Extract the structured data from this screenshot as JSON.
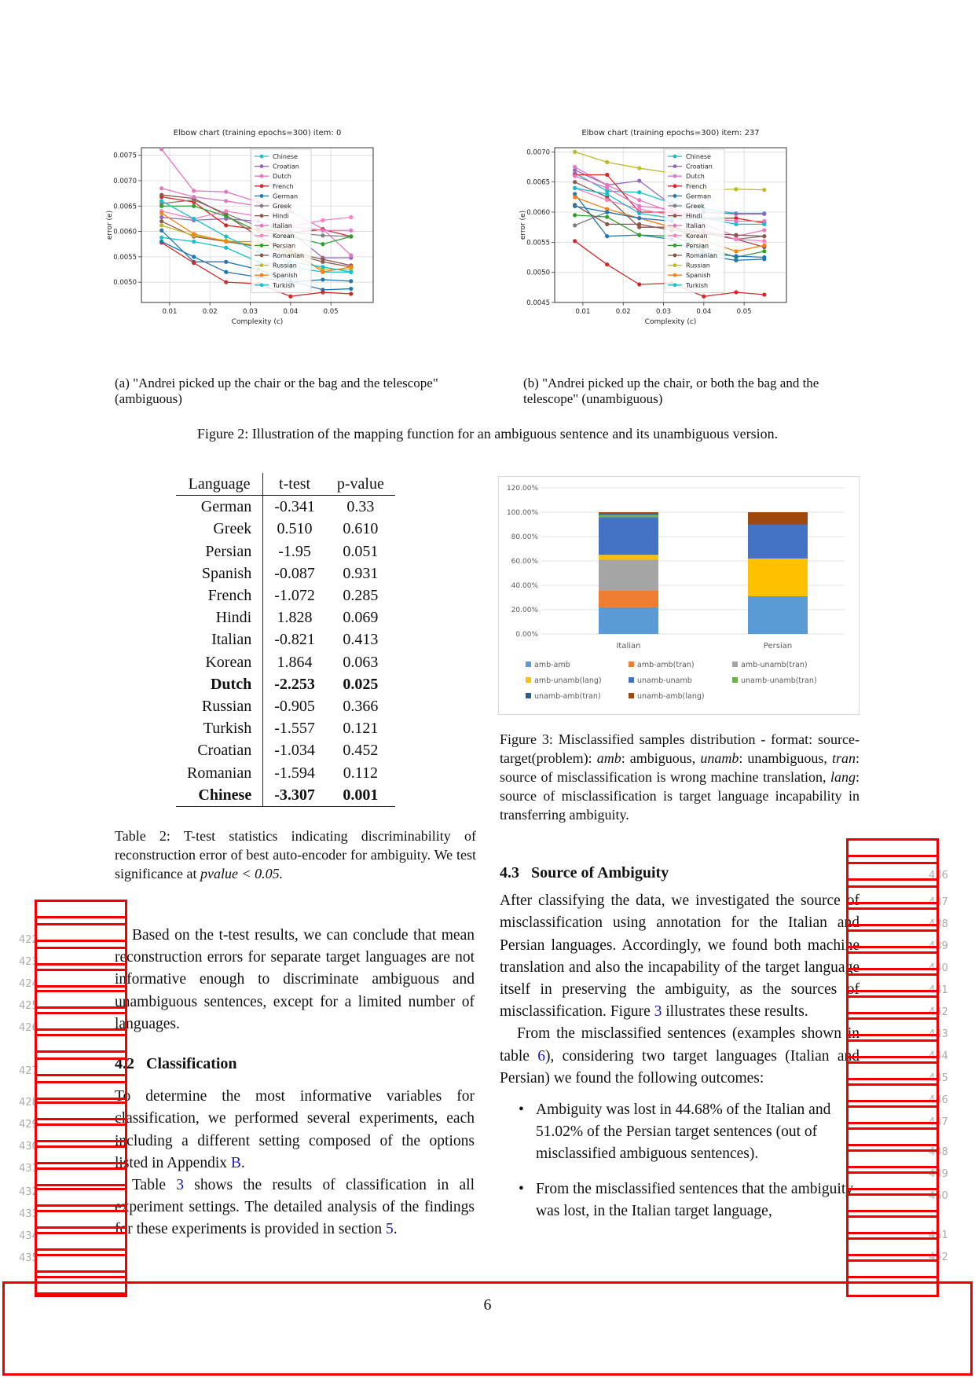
{
  "figure2": {
    "chart_a": {
      "title": "Elbow chart (training epochs=300) item: 0",
      "xlabel": "Complexity (c)",
      "ylabel": "error (e)",
      "x_ticks": [
        "0.01",
        "0.02",
        "0.03",
        "0.04",
        "0.05"
      ],
      "y_ticks": [
        "0.0050",
        "0.0055",
        "0.0060",
        "0.0065",
        "0.0070",
        "0.0075"
      ]
    },
    "chart_b": {
      "title": "Elbow chart (training epochs=300) item: 237",
      "xlabel": "Complexity (c)",
      "ylabel": "error (e)",
      "x_ticks": [
        "0.01",
        "0.02",
        "0.03",
        "0.04",
        "0.05"
      ],
      "y_ticks": [
        "0.0045",
        "0.0050",
        "0.0055",
        "0.0060",
        "0.0065",
        "0.0070"
      ]
    },
    "subcaption_a": "(a) \"Andrei picked up the chair or the bag and the telescope\" (ambiguous)",
    "subcaption_b": "(b) \"Andrei picked up the chair, or both the bag and the telescope\" (unambiguous)",
    "caption": "Figure 2: Illustration of the mapping function for an ambiguous sentence and its unambiguous version."
  },
  "chart_data": [
    {
      "type": "line",
      "title": "Elbow chart (training epochs=300) item: 0",
      "xlabel": "Complexity (c)",
      "ylabel": "error (e)",
      "x": [
        0.008,
        0.016,
        0.024,
        0.032,
        0.04,
        0.048,
        0.055
      ],
      "xlim": [
        0.003,
        0.0605
      ],
      "ylim": [
        0.0046,
        0.00765
      ],
      "legend": "top-center",
      "series": [
        {
          "name": "Chinese",
          "color": "#17becf",
          "values": [
            0.00588,
            0.0058,
            0.00568,
            0.0054,
            0.0053,
            0.0052,
            0.0052
          ]
        },
        {
          "name": "Croatian",
          "color": "#9467bd",
          "values": [
            0.00628,
            0.00622,
            0.00625,
            0.0062,
            0.006,
            0.00548,
            0.00548
          ]
        },
        {
          "name": "Dutch",
          "color": "#e377c2",
          "values": [
            0.00762,
            0.0068,
            0.00678,
            0.00658,
            0.0064,
            0.00605,
            0.00553
          ]
        },
        {
          "name": "French",
          "color": "#d62728",
          "values": [
            0.00668,
            0.00658,
            0.00612,
            0.00604,
            0.00597,
            0.00604,
            0.0059
          ]
        },
        {
          "name": "German",
          "color": "#1f77b4",
          "values": [
            0.00602,
            0.0054,
            0.0054,
            0.00525,
            0.00502,
            0.00485,
            0.00487
          ]
        },
        {
          "name": "Greek",
          "color": "#7f7f7f",
          "values": [
            0.00655,
            0.00662,
            0.00635,
            0.0061,
            0.00598,
            0.00592,
            0.0059
          ]
        },
        {
          "name": "Hindi",
          "color": "#8c564b",
          "values": [
            0.00672,
            0.00665,
            0.00632,
            0.0059,
            0.00558,
            0.0054,
            0.0053
          ]
        },
        {
          "name": "Italian",
          "color": "#e377c2",
          "values": [
            0.00685,
            0.00668,
            0.0066,
            0.0065,
            0.0061,
            0.00602,
            0.00602
          ]
        },
        {
          "name": "Korean",
          "color": "#ff7fbf",
          "values": [
            0.0064,
            0.00625,
            0.0064,
            0.0063,
            0.0061,
            0.00622,
            0.00628
          ]
        },
        {
          "name": "Persian",
          "color": "#2ca02c",
          "values": [
            0.0065,
            0.0065,
            0.0063,
            0.006,
            0.0059,
            0.00575,
            0.0059
          ]
        },
        {
          "name": "Romanian",
          "color": "#8c564b",
          "values": [
            0.0062,
            0.0059,
            0.0058,
            0.0057,
            0.0056,
            0.00545,
            0.00533
          ]
        },
        {
          "name": "Russian",
          "color": "#bcbd22",
          "values": [
            0.00612,
            0.00592,
            0.00582,
            0.00572,
            0.00555,
            0.00525,
            0.00525
          ]
        },
        {
          "name": "Spanish",
          "color": "#ff7f0e",
          "values": [
            0.00636,
            0.00595,
            0.0058,
            0.0058,
            0.00565,
            0.0052,
            0.0053
          ]
        },
        {
          "name": "Turkish",
          "color": "#17becf",
          "values": [
            0.0066,
            0.00625,
            0.0059,
            0.0056,
            0.0054,
            0.0053,
            0.0052
          ]
        },
        {
          "name": "",
          "color": "#d62728",
          "values": [
            0.00578,
            0.00538,
            0.005,
            0.00497,
            0.00472,
            0.0048,
            0.00477
          ]
        },
        {
          "name": "",
          "color": "#1f77b4",
          "values": [
            0.0058,
            0.0055,
            0.0052,
            0.0051,
            0.005,
            0.00505,
            0.00502
          ]
        }
      ]
    },
    {
      "type": "line",
      "title": "Elbow chart (training epochs=300) item: 237",
      "xlabel": "Complexity (c)",
      "ylabel": "error (e)",
      "x": [
        0.008,
        0.016,
        0.024,
        0.032,
        0.04,
        0.048,
        0.055
      ],
      "xlim": [
        0.003,
        0.0605
      ],
      "ylim": [
        0.0045,
        0.00707
      ],
      "legend": "top-center",
      "series": [
        {
          "name": "Chinese",
          "color": "#17becf",
          "values": [
            0.00665,
            0.00635,
            0.00633,
            0.00615,
            0.00605,
            0.00598,
            0.00598
          ]
        },
        {
          "name": "Croatian",
          "color": "#9467bd",
          "values": [
            0.0067,
            0.00645,
            0.00652,
            0.00612,
            0.006,
            0.00597,
            0.00597
          ]
        },
        {
          "name": "Dutch",
          "color": "#e377c2",
          "values": [
            0.00675,
            0.00645,
            0.0062,
            0.006,
            0.0058,
            0.0056,
            0.0057
          ]
        },
        {
          "name": "French",
          "color": "#d62728",
          "values": [
            0.00662,
            0.00662,
            0.006,
            0.006,
            0.0059,
            0.0059,
            0.00582
          ]
        },
        {
          "name": "German",
          "color": "#1f77b4",
          "values": [
            0.0063,
            0.0056,
            0.00562,
            0.00555,
            0.00528,
            0.0052,
            0.00522
          ]
        },
        {
          "name": "Greek",
          "color": "#7f7f7f",
          "values": [
            0.00578,
            0.006,
            0.0059,
            0.00575,
            0.00565,
            0.00555,
            0.0056
          ]
        },
        {
          "name": "Hindi",
          "color": "#8c564b",
          "values": [
            0.0065,
            0.00625,
            0.00575,
            0.00575,
            0.00565,
            0.00555,
            0.00542
          ]
        },
        {
          "name": "Italian",
          "color": "#e377c2",
          "values": [
            0.0066,
            0.0064,
            0.0061,
            0.00605,
            0.0059,
            0.00585,
            0.00585
          ]
        },
        {
          "name": "Korean",
          "color": "#ff7fbf",
          "values": [
            0.0064,
            0.0062,
            0.00605,
            0.00595,
            0.0057,
            0.00555,
            0.00552
          ]
        },
        {
          "name": "Persian",
          "color": "#2ca02c",
          "values": [
            0.00595,
            0.00592,
            0.00562,
            0.0056,
            0.00542,
            0.00525,
            0.00535
          ]
        },
        {
          "name": "Romanian",
          "color": "#8c564b",
          "values": [
            0.00612,
            0.0058,
            0.0058,
            0.0057,
            0.00565,
            0.00562,
            0.0056
          ]
        },
        {
          "name": "Russian",
          "color": "#bcbd22",
          "values": [
            0.007,
            0.00683,
            0.00673,
            0.00665,
            0.00637,
            0.00638,
            0.00637
          ]
        },
        {
          "name": "Spanish",
          "color": "#ff7f0e",
          "values": [
            0.00625,
            0.00605,
            0.0059,
            0.00575,
            0.00553,
            0.00535,
            0.00545
          ]
        },
        {
          "name": "Turkish",
          "color": "#17becf",
          "values": [
            0.0064,
            0.0063,
            0.00598,
            0.0059,
            0.0059,
            0.0058,
            0.0058
          ]
        },
        {
          "name": "",
          "color": "#d62728",
          "values": [
            0.00552,
            0.00513,
            0.0048,
            0.00482,
            0.0046,
            0.00467,
            0.00463
          ]
        },
        {
          "name": "",
          "color": "#1f77b4",
          "values": [
            0.0061,
            0.006,
            0.0059,
            0.00585,
            0.00532,
            0.00527,
            0.00525
          ]
        }
      ]
    },
    {
      "type": "bar",
      "stacked": true,
      "categories": [
        "Italian",
        "Persian"
      ],
      "y_ticks": [
        "0.00%",
        "20.00%",
        "40.00%",
        "60.00%",
        "80.00%",
        "100.00%",
        "120.00%"
      ],
      "ylim": [
        0,
        120
      ],
      "legend": "bottom",
      "series": [
        {
          "name": "amb-amb",
          "color": "#5b9bd5",
          "values": [
            22,
            31
          ]
        },
        {
          "name": "amb-amb(tran)",
          "color": "#ed7d31",
          "values": [
            14,
            0
          ]
        },
        {
          "name": "amb-unamb(tran)",
          "color": "#a5a5a5",
          "values": [
            25,
            0
          ]
        },
        {
          "name": "amb-unamb(lang)",
          "color": "#ffc000",
          "values": [
            4,
            31
          ]
        },
        {
          "name": "unamb-unamb",
          "color": "#4472c4",
          "values": [
            31,
            28
          ]
        },
        {
          "name": "unamb-unamb(tran)",
          "color": "#70ad47",
          "values": [
            2,
            0
          ]
        },
        {
          "name": "unamb-amb(tran)",
          "color": "#255e91",
          "values": [
            1,
            0
          ]
        },
        {
          "name": "unamb-amb(lang)",
          "color": "#9e480e",
          "values": [
            1,
            10
          ]
        }
      ]
    }
  ],
  "table2": {
    "headers": [
      "Language",
      "t-test",
      "p-value"
    ],
    "rows": [
      {
        "lang": "German",
        "t": "-0.341",
        "p": "0.33",
        "bold": false
      },
      {
        "lang": "Greek",
        "t": "0.510",
        "p": "0.610",
        "bold": false
      },
      {
        "lang": "Persian",
        "t": "-1.95",
        "p": "0.051",
        "bold": false
      },
      {
        "lang": "Spanish",
        "t": "-0.087",
        "p": "0.931",
        "bold": false
      },
      {
        "lang": "French",
        "t": "-1.072",
        "p": "0.285",
        "bold": false
      },
      {
        "lang": "Hindi",
        "t": "1.828",
        "p": "0.069",
        "bold": false
      },
      {
        "lang": "Italian",
        "t": "-0.821",
        "p": "0.413",
        "bold": false
      },
      {
        "lang": "Korean",
        "t": "1.864",
        "p": "0.063",
        "bold": false
      },
      {
        "lang": "Dutch",
        "t": "-2.253",
        "p": "0.025",
        "bold": true
      },
      {
        "lang": "Russian",
        "t": "-0.905",
        "p": "0.366",
        "bold": false
      },
      {
        "lang": "Turkish",
        "t": "-1.557",
        "p": "0.121",
        "bold": false
      },
      {
        "lang": "Croatian",
        "t": "-1.034",
        "p": "0.452",
        "bold": false
      },
      {
        "lang": "Romanian",
        "t": "-1.594",
        "p": "0.112",
        "bold": false
      },
      {
        "lang": "Chinese",
        "t": "-3.307",
        "p": "0.001",
        "bold": true
      }
    ],
    "caption": "Table 2: T-test statistics indicating discriminability of reconstruction error of best auto-encoder for ambiguity. We test significance at",
    "caption_math": "pvalue < 0.05."
  },
  "figure3": {
    "caption_prefix": "Figure 3: Misclassified samples distribution - format: source-target(problem):",
    "amb": "amb",
    "amb_def": ": ambiguous,",
    "unamb": "unamb",
    "unamb_def": ": unambiguous,",
    "tran": "tran",
    "tran_def": ": source of misclassification is wrong machine translation,",
    "lang": "lang",
    "lang_def": ": source of misclassification is target language incapability in transferring ambiguity."
  },
  "left_col": {
    "para1": "Based on the t-test results, we can conclude that mean reconstruction errors for separate target languages are not informative enough to discriminate ambiguous and unambiguous sentences, except for a limited number of languages.",
    "sec42_num": "4.2",
    "sec42_title": "Classification",
    "para2": "To determine the most informative variables for classification, we performed several experiments, each including a different setting composed of the options listed in Appendix",
    "para2_link": "B",
    "para2_end": ".",
    "para3_start": "Table",
    "para3_link": "3",
    "para3_rest": "shows the results of classification in all experiment settings. The detailed analysis of the findings for these experiments is provided in section",
    "para3_link2": "5",
    "para3_end": "."
  },
  "right_col": {
    "sec43_num": "4.3",
    "sec43_title": "Source of Ambiguity",
    "para1": "After classifying the data, we investigated the source of misclassification using annotation for the Italian and Persian languages. Accordingly, we found both machine translation and also the incapability of the target language itself in preserving the ambiguity, as the sources of misclassification.",
    "para1b_start": "Figure",
    "para1b_link": "3",
    "para1b_rest": "illustrates these results.",
    "para2_start": "From the misclassified sentences (examples shown in table",
    "para2_link": "6",
    "para2_rest": "), considering two target languages (Italian and Persian) we found the following outcomes:",
    "bullet1": "Ambiguity was lost in 44.68% of the Italian and 51.02% of the Persian target sentences (out of misclassified ambiguous sentences).",
    "bullet2": "From the misclassified sentences that the ambiguity was lost, in the Italian target language,"
  },
  "line_numbers_left": [
    "422",
    "423",
    "424",
    "425",
    "426",
    "427",
    "428",
    "429",
    "430",
    "431",
    "432",
    "433",
    "434",
    "435"
  ],
  "line_numbers_right": [
    "436",
    "437",
    "438",
    "439",
    "440",
    "441",
    "442",
    "443",
    "444",
    "445",
    "446",
    "447",
    "448",
    "449",
    "450",
    "451",
    "452"
  ],
  "page_number": "6"
}
